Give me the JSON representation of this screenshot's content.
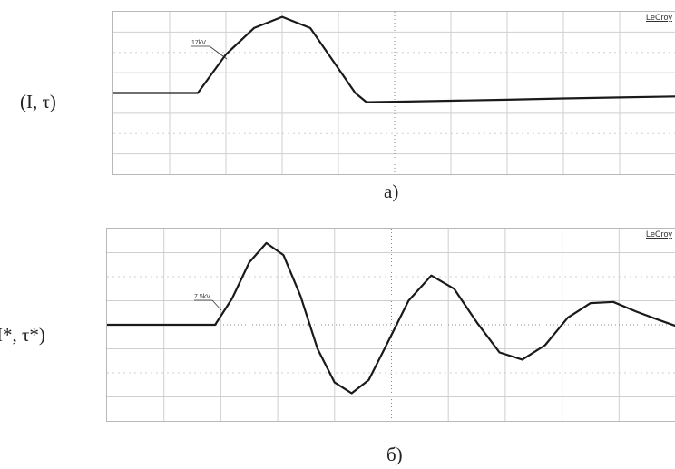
{
  "panels": [
    {
      "brand": "LeCroy",
      "row_label": "(I, τ)",
      "caption": "a)",
      "annotation": "17kV"
    },
    {
      "brand": "LeCroy",
      "row_label": "I*, τ*)",
      "caption": "б)",
      "annotation": "7.5kV"
    }
  ],
  "chart_data": [
    {
      "type": "line",
      "title": "",
      "xlabel": "",
      "ylabel": "",
      "grid": true,
      "grid_divisions": {
        "x": 10,
        "y": 8
      },
      "xlim": [
        0,
        10
      ],
      "ylim": [
        -4,
        4
      ],
      "annotations": [
        "17kV"
      ],
      "series": [
        {
          "x": [
            0,
            1,
            1.5,
            2,
            2.5,
            3,
            3.5,
            4,
            4.3,
            4.5,
            5,
            6,
            7,
            8,
            9,
            10
          ],
          "y": [
            0,
            0,
            0,
            1.9,
            3.2,
            3.75,
            3.2,
            1.2,
            0,
            -0.45,
            -0.43,
            -0.38,
            -0.33,
            -0.27,
            -0.22,
            -0.17
          ]
        }
      ]
    },
    {
      "type": "line",
      "title": "",
      "xlabel": "",
      "ylabel": "",
      "grid": true,
      "grid_divisions": {
        "x": 10,
        "y": 8
      },
      "xlim": [
        0,
        10
      ],
      "ylim": [
        -4,
        4
      ],
      "annotations": [
        "7.5kV"
      ],
      "series": [
        {
          "x": [
            0,
            1,
            1.9,
            2.2,
            2.5,
            2.8,
            3.1,
            3.4,
            3.7,
            4.0,
            4.3,
            4.6,
            4.9,
            5.3,
            5.7,
            6.1,
            6.5,
            6.9,
            7.3,
            7.7,
            8.1,
            8.5,
            8.9,
            9.3,
            9.7,
            10
          ],
          "y": [
            0,
            0,
            0,
            1.1,
            2.6,
            3.4,
            2.9,
            1.2,
            -1.0,
            -2.4,
            -2.85,
            -2.3,
            -0.9,
            1.0,
            2.05,
            1.5,
            0.1,
            -1.15,
            -1.45,
            -0.85,
            0.3,
            0.9,
            0.95,
            0.55,
            0.2,
            -0.05
          ]
        }
      ]
    }
  ]
}
